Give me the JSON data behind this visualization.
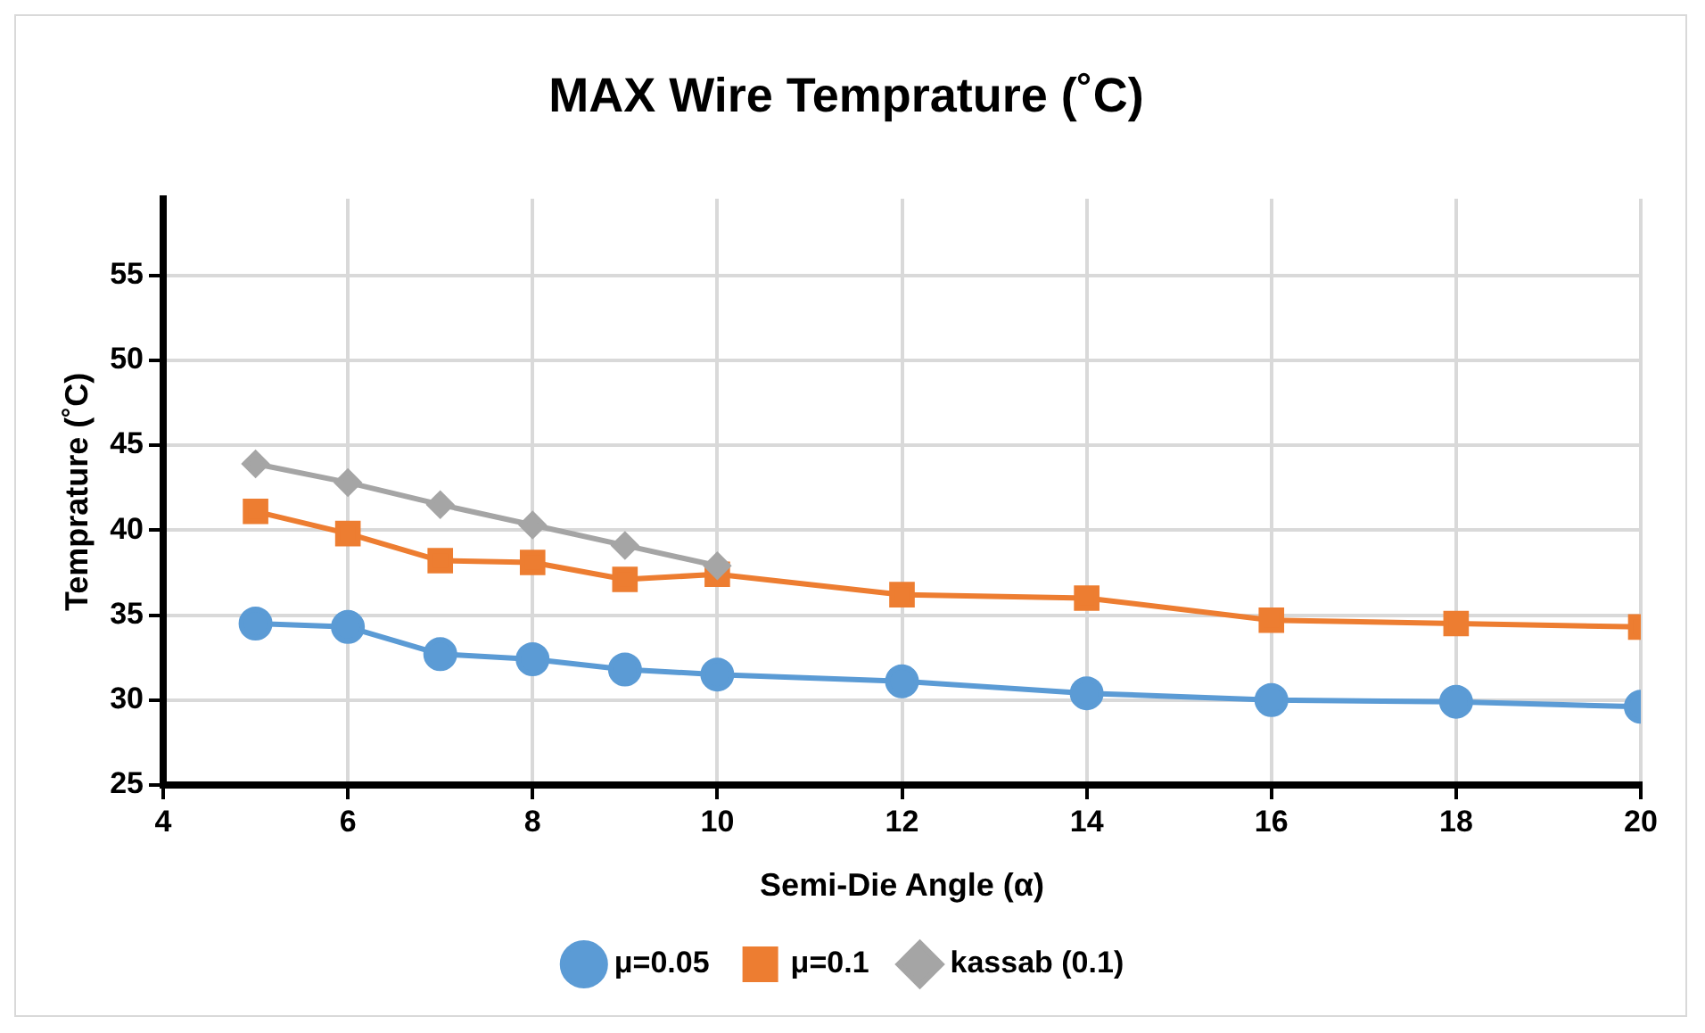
{
  "chart_data": {
    "type": "line",
    "title": "MAX Wire Temprature (˚C)",
    "xlabel": "Semi-Die Angle (α)",
    "ylabel": "Temprature (˚C)",
    "xlim": [
      4,
      20
    ],
    "xticks": [
      4,
      6,
      8,
      10,
      12,
      14,
      16,
      18,
      20
    ],
    "ylim": [
      25,
      59.5
    ],
    "yticks": [
      25,
      30,
      35,
      40,
      45,
      50,
      55
    ],
    "grid": true,
    "legend": "bottom",
    "series": [
      {
        "name": "μ=0.05",
        "color": "#5b9bd5",
        "marker": "circle",
        "x": [
          5,
          6,
          7,
          8,
          9,
          10,
          12,
          14,
          16,
          18,
          20
        ],
        "values": [
          34.5,
          34.3,
          32.7,
          32.4,
          31.8,
          31.5,
          31.1,
          30.4,
          30.0,
          29.9,
          29.6
        ]
      },
      {
        "name": "μ=0.1",
        "color": "#ed7d31",
        "marker": "square",
        "x": [
          5,
          6,
          7,
          8,
          9,
          10,
          12,
          14,
          16,
          18,
          20
        ],
        "values": [
          41.1,
          39.8,
          38.2,
          38.1,
          37.1,
          37.4,
          36.2,
          36.0,
          34.7,
          34.5,
          34.3
        ]
      },
      {
        "name": "kassab (0.1)",
        "color": "#a5a5a5",
        "marker": "diamond",
        "x": [
          5,
          6,
          7,
          8,
          9,
          10
        ],
        "values": [
          43.9,
          42.8,
          41.5,
          40.3,
          39.1,
          37.9
        ]
      }
    ]
  }
}
